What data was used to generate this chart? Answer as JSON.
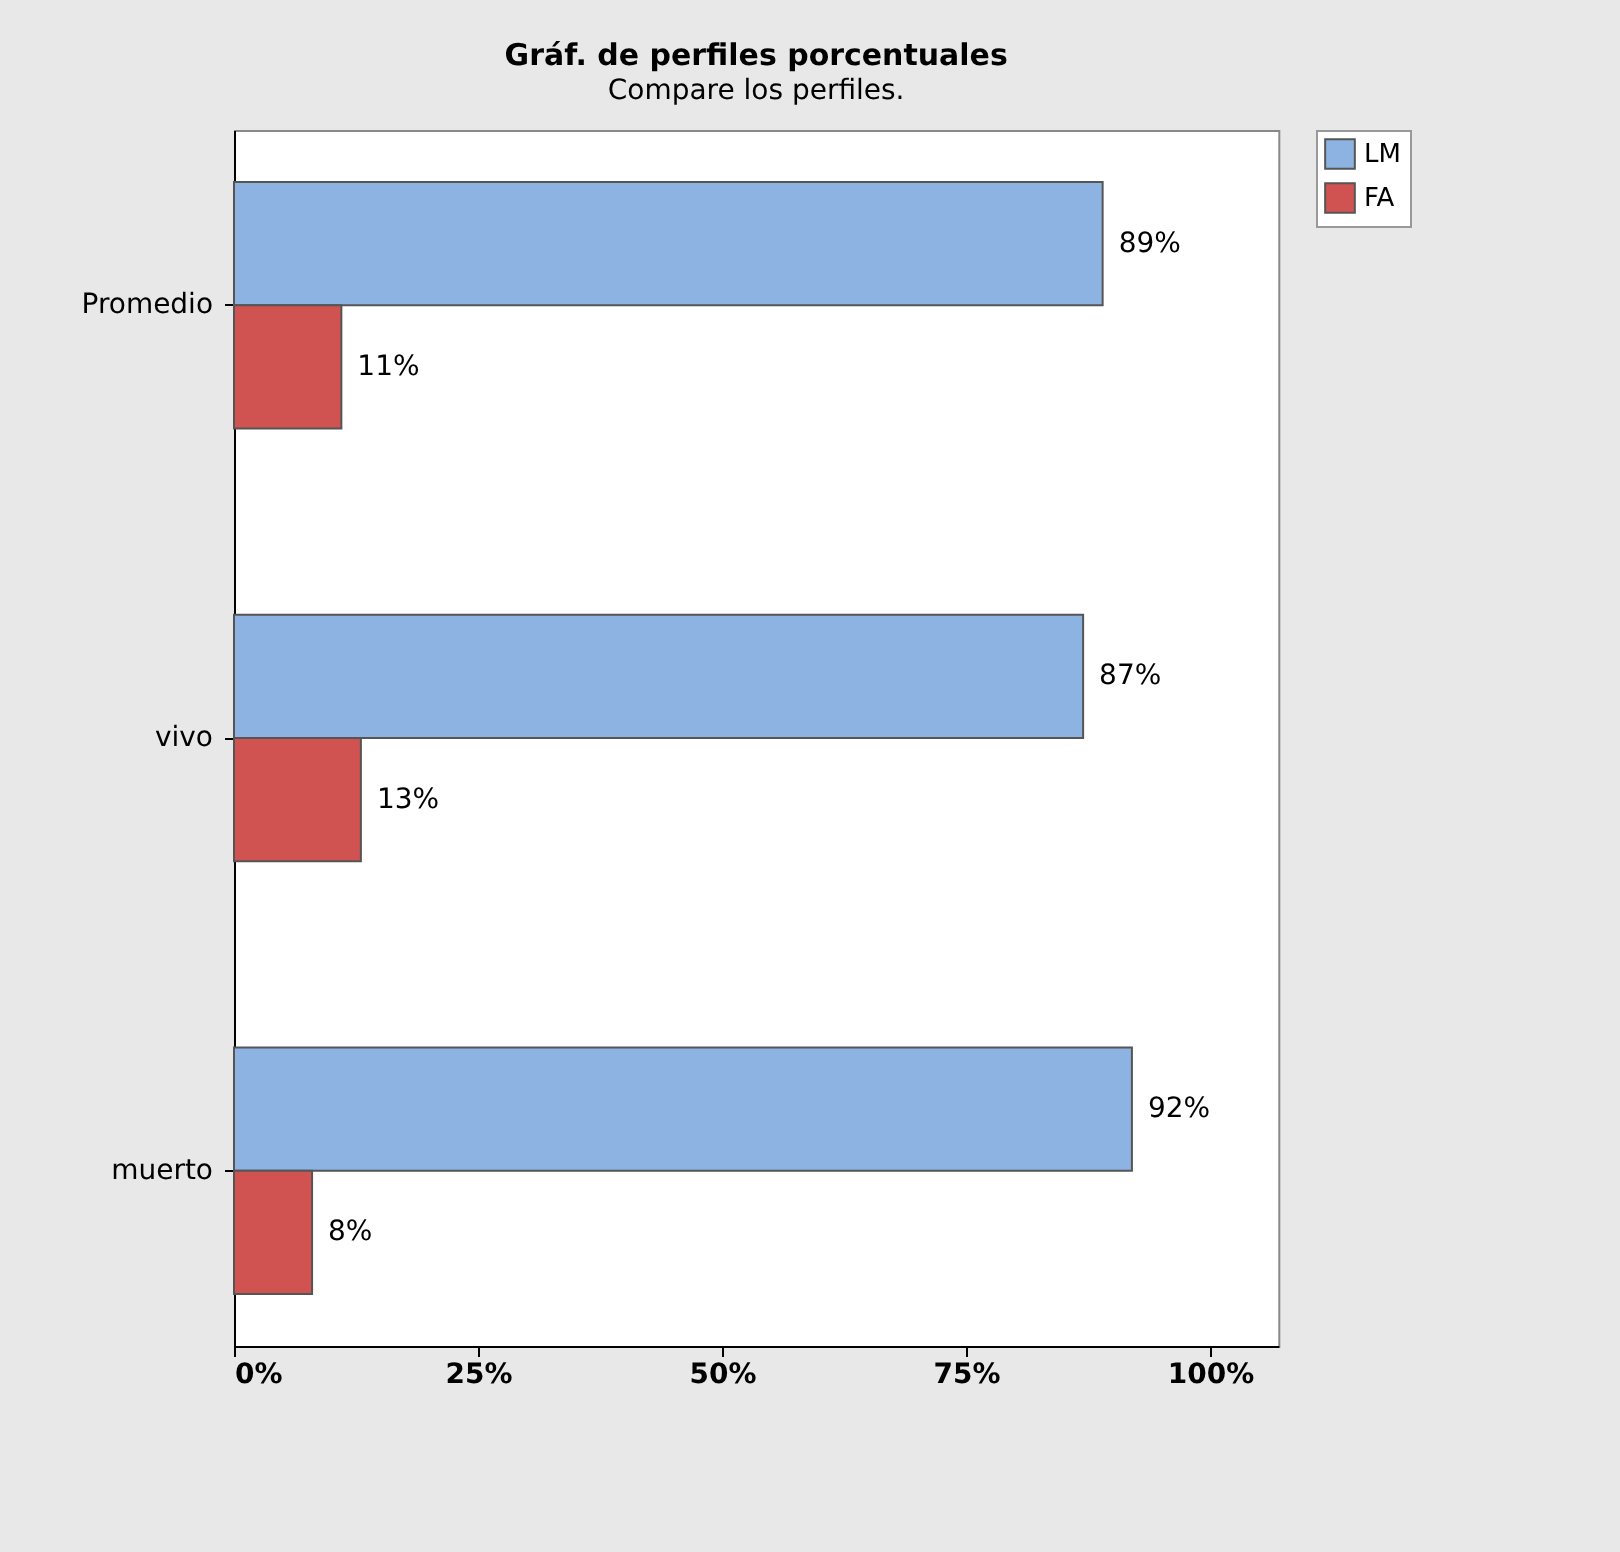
{
  "chart_data": {
    "type": "bar",
    "orientation": "horizontal",
    "title": "Gráf. de perfiles porcentuales",
    "subtitle": "Compare los perfiles.",
    "categories": [
      "Promedio",
      "vivo",
      "muerto"
    ],
    "series": [
      {
        "name": "LM",
        "color": "#8db3e2",
        "values": [
          89,
          87,
          92
        ],
        "value_labels": [
          "89%",
          "87%",
          "92%"
        ]
      },
      {
        "name": "FA",
        "color": "#d05352",
        "values": [
          11,
          13,
          8
        ],
        "value_labels": [
          "11%",
          "13%",
          "8%"
        ]
      }
    ],
    "xlim": [
      0,
      107
    ],
    "xticks": [
      {
        "value": 0,
        "label": "0%"
      },
      {
        "value": 25,
        "label": "25%"
      },
      {
        "value": 50,
        "label": "50%"
      },
      {
        "value": 75,
        "label": "75%"
      },
      {
        "value": 100,
        "label": "100%"
      }
    ],
    "legend": "top right",
    "grid": false
  }
}
